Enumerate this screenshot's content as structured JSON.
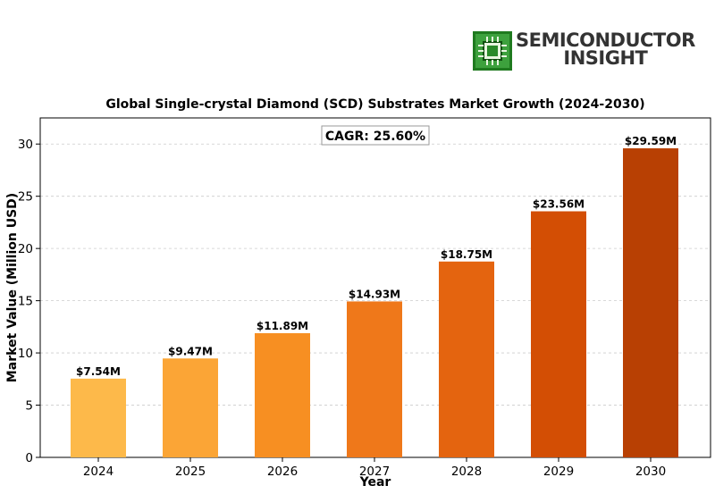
{
  "logo": {
    "line1": "SEMICONDUCTOR",
    "line2": "INSIGHT",
    "icon": "chip-icon",
    "brand_color": "#2a8a2a"
  },
  "chart_data": {
    "type": "bar",
    "title": "Global Single-crystal Diamond (SCD) Substrates Market Growth (2024-2030)",
    "xlabel": "Year",
    "ylabel": "Market Value (Million USD)",
    "categories": [
      "2024",
      "2025",
      "2026",
      "2027",
      "2028",
      "2029",
      "2030"
    ],
    "values": [
      7.54,
      9.47,
      11.89,
      14.93,
      18.75,
      23.56,
      29.59
    ],
    "data_labels": [
      "$7.54M",
      "$9.47M",
      "$11.89M",
      "$14.93M",
      "$18.75M",
      "$23.56M",
      "$29.59M"
    ],
    "bar_colors": [
      "#fdb94a",
      "#fba536",
      "#f78f22",
      "#ef781a",
      "#e4640f",
      "#d34e04",
      "#b84003"
    ],
    "ylim": [
      0,
      32.5
    ],
    "yticks": [
      0,
      5,
      10,
      15,
      20,
      25,
      30
    ],
    "grid": true,
    "annotation": "CAGR: 25.60%"
  }
}
